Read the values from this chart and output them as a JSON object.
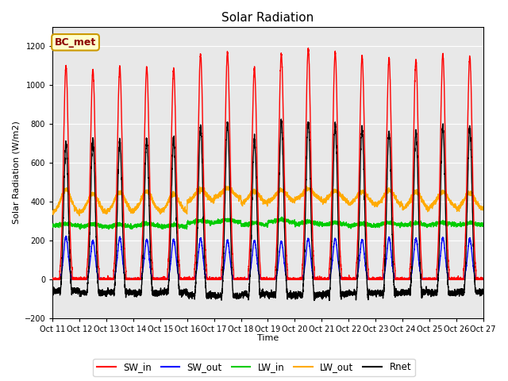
{
  "title": "Solar Radiation",
  "ylabel": "Solar Radiation (W/m2)",
  "xlabel": "Time",
  "annotation": "BC_met",
  "ylim": [
    -200,
    1300
  ],
  "yticks": [
    -200,
    0,
    200,
    400,
    600,
    800,
    1000,
    1200
  ],
  "series": {
    "SW_in": {
      "color": "#ff0000",
      "lw": 1.0
    },
    "SW_out": {
      "color": "#0000ff",
      "lw": 1.0
    },
    "LW_in": {
      "color": "#00cc00",
      "lw": 1.0
    },
    "LW_out": {
      "color": "#ffaa00",
      "lw": 1.0
    },
    "Rnet": {
      "color": "#000000",
      "lw": 1.0
    }
  },
  "n_days": 16,
  "points_per_day": 288,
  "start_day": 11,
  "sw_peaks": [
    1100,
    1080,
    1095,
    1090,
    1085,
    1160,
    1170,
    1090,
    1160,
    1190,
    1170,
    1150,
    1140,
    1130,
    1160,
    1145
  ],
  "sw_out_peaks": [
    220,
    200,
    215,
    205,
    205,
    210,
    200,
    200,
    195,
    210,
    210,
    205,
    215,
    210,
    215,
    210
  ],
  "lw_in_base": [
    275,
    272,
    270,
    275,
    270,
    290,
    295,
    280,
    295,
    285,
    280,
    275,
    280,
    278,
    282,
    280
  ],
  "lw_out_base": [
    335,
    340,
    345,
    350,
    345,
    400,
    420,
    390,
    400,
    410,
    400,
    385,
    380,
    360,
    370,
    360
  ],
  "lw_out_peak": [
    460,
    440,
    450,
    455,
    440,
    465,
    470,
    455,
    460,
    465,
    455,
    450,
    460,
    450,
    450,
    445
  ],
  "rnet_night": [
    -60,
    -70,
    -65,
    -70,
    -65,
    -80,
    -85,
    -75,
    -80,
    -80,
    -75,
    -70,
    -70,
    -65,
    -70,
    -65
  ],
  "background_color": "#ffffff",
  "plot_bg_color": "#e8e8e8",
  "grid_color": "#ffffff"
}
